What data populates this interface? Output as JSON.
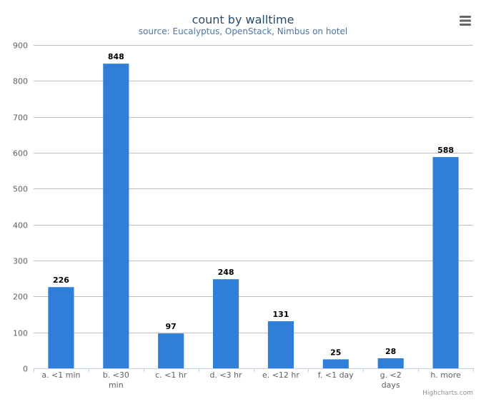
{
  "chart_data": {
    "type": "bar",
    "title": "count by walltime",
    "subtitle": "source: Eucalyptus, OpenStack, Nimbus on hotel",
    "categories": [
      "a. <1 min",
      "b. <30 min",
      "c. <1 hr",
      "d. <3 hr",
      "e. <12 hr",
      "f. <1 day",
      "g. <2 days",
      "h. more"
    ],
    "category_lines": [
      [
        "a. <1 min"
      ],
      [
        "b. <30",
        "min"
      ],
      [
        "c. <1 hr"
      ],
      [
        "d. <3 hr"
      ],
      [
        "e. <12 hr"
      ],
      [
        "f. <1 day"
      ],
      [
        "g. <2",
        "days"
      ],
      [
        "h. more"
      ]
    ],
    "values": [
      226,
      848,
      97,
      248,
      131,
      25,
      28,
      588
    ],
    "data_labels": [
      "226",
      "848",
      "97",
      "248",
      "131",
      "25",
      "28",
      "588"
    ],
    "xlabel": "",
    "ylabel": "",
    "ylim": [
      0,
      900
    ],
    "yticks": [
      0,
      100,
      200,
      300,
      400,
      500,
      600,
      700,
      800,
      900
    ],
    "ytick_labels": [
      "0",
      "100",
      "200",
      "300",
      "400",
      "500",
      "600",
      "700",
      "800",
      "900"
    ],
    "grid": true,
    "legend": "none",
    "bar_color": "#2f7ed8",
    "grid_color": "#c0c0c0",
    "axis_color": "#c0d0e0"
  },
  "credits": "Highcharts.com",
  "menu_icon": "hamburger-menu-icon"
}
